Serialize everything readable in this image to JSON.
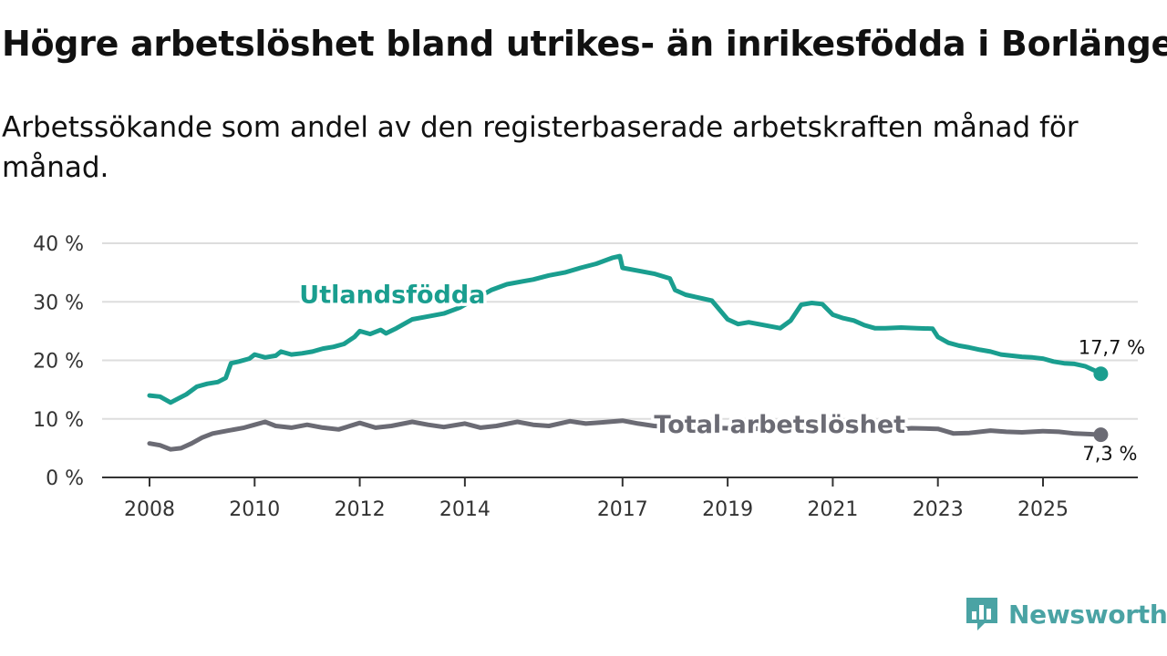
{
  "title": "Högre arbetslöshet bland utrikes- än inrikesfödda i Borlänge",
  "subtitle": "Arbetssökande som andel av den registerbaserade arbetskraften månad för månad.",
  "brand": {
    "name": "Newsworthy",
    "icon": "newsworthy-logo-icon"
  },
  "colors": {
    "utlandsfodda": "#1a9e8f",
    "total": "#6b6b74",
    "brand": "#4aa3a4",
    "grid": "#dddddd",
    "axis": "#333333"
  },
  "chart_data": {
    "type": "line",
    "title": "Högre arbetslöshet bland utrikes- än inrikesfödda i Borlänge",
    "xlabel": "",
    "ylabel": "",
    "ylim": [
      0,
      40
    ],
    "xlim": [
      2008,
      2026.3
    ],
    "y_ticks": [
      0,
      10,
      20,
      30,
      40
    ],
    "y_tick_labels": [
      "0 %",
      "10 %",
      "20 %",
      "30 %",
      "40 %"
    ],
    "x_ticks": [
      2008,
      2010,
      2012,
      2014,
      2017,
      2019,
      2021,
      2023,
      2025
    ],
    "x_tick_labels": [
      "2008",
      "2010",
      "2012",
      "2014",
      "2017",
      "2019",
      "2021",
      "2023",
      "2025"
    ],
    "grid": true,
    "series": [
      {
        "name": "Utlandsfödda",
        "label": "Utlandsfödda",
        "end_label": "17,7 %",
        "x": [
          2008.0,
          2008.2,
          2008.4,
          2008.55,
          2008.7,
          2008.9,
          2009.1,
          2009.3,
          2009.45,
          2009.55,
          2009.7,
          2009.9,
          2010.0,
          2010.2,
          2010.4,
          2010.5,
          2010.7,
          2010.9,
          2011.1,
          2011.3,
          2011.5,
          2011.7,
          2011.9,
          2012.0,
          2012.2,
          2012.4,
          2012.5,
          2012.7,
          2012.9,
          2013.0,
          2013.3,
          2013.6,
          2013.9,
          2014.2,
          2014.5,
          2014.8,
          2015.1,
          2015.3,
          2015.6,
          2015.9,
          2016.2,
          2016.5,
          2016.8,
          2016.95,
          2017.0,
          2017.3,
          2017.6,
          2017.9,
          2018.0,
          2018.2,
          2018.4,
          2018.7,
          2019.0,
          2019.2,
          2019.4,
          2019.7,
          2020.0,
          2020.2,
          2020.4,
          2020.6,
          2020.8,
          2021.0,
          2021.2,
          2021.4,
          2021.6,
          2021.8,
          2022.0,
          2022.3,
          2022.6,
          2022.9,
          2023.0,
          2023.2,
          2023.4,
          2023.6,
          2023.8,
          2024.0,
          2024.2,
          2024.4,
          2024.6,
          2024.8,
          2025.0,
          2025.2,
          2025.4,
          2025.6,
          2025.8,
          2026.0,
          2026.1
        ],
        "values": [
          14.0,
          13.8,
          12.8,
          13.5,
          14.2,
          15.5,
          16.0,
          16.3,
          17.0,
          19.5,
          19.8,
          20.3,
          21.0,
          20.5,
          20.8,
          21.5,
          21.0,
          21.2,
          21.5,
          22.0,
          22.3,
          22.8,
          24.0,
          25.0,
          24.5,
          25.2,
          24.6,
          25.5,
          26.5,
          27.0,
          27.5,
          28.0,
          29.0,
          30.5,
          32.0,
          33.0,
          33.5,
          33.8,
          34.5,
          35.0,
          35.8,
          36.5,
          37.5,
          37.8,
          35.8,
          35.3,
          34.8,
          34.0,
          32.0,
          31.2,
          30.8,
          30.2,
          27.0,
          26.2,
          26.5,
          26.0,
          25.5,
          26.8,
          29.5,
          29.8,
          29.6,
          27.8,
          27.2,
          26.8,
          26.0,
          25.5,
          25.5,
          25.6,
          25.5,
          25.4,
          24.0,
          23.0,
          22.5,
          22.2,
          21.8,
          21.5,
          21.0,
          20.8,
          20.6,
          20.5,
          20.3,
          19.8,
          19.5,
          19.4,
          19.0,
          18.2,
          17.7
        ]
      },
      {
        "name": "Total arbetslöshet",
        "label": "Total arbetslöshet",
        "end_label": "7,3 %",
        "x": [
          2008.0,
          2008.2,
          2008.4,
          2008.6,
          2008.8,
          2009.0,
          2009.2,
          2009.5,
          2009.8,
          2010.0,
          2010.2,
          2010.4,
          2010.7,
          2011.0,
          2011.3,
          2011.6,
          2012.0,
          2012.3,
          2012.6,
          2013.0,
          2013.3,
          2013.6,
          2014.0,
          2014.3,
          2014.6,
          2015.0,
          2015.3,
          2015.6,
          2016.0,
          2016.3,
          2016.6,
          2017.0,
          2017.3,
          2017.6,
          2018.0,
          2018.5,
          2019.0,
          2019.5,
          2020.0,
          2020.5,
          2021.0,
          2021.5,
          2022.0,
          2022.5,
          2023.0,
          2023.3,
          2023.6,
          2024.0,
          2024.3,
          2024.6,
          2025.0,
          2025.3,
          2025.6,
          2025.9,
          2026.1
        ],
        "values": [
          5.8,
          5.5,
          4.8,
          5.0,
          5.8,
          6.8,
          7.5,
          8.0,
          8.5,
          9.0,
          9.5,
          8.8,
          8.5,
          9.0,
          8.5,
          8.2,
          9.3,
          8.5,
          8.8,
          9.5,
          9.0,
          8.6,
          9.2,
          8.5,
          8.8,
          9.5,
          9.0,
          8.8,
          9.6,
          9.2,
          9.4,
          9.7,
          9.2,
          8.8,
          8.6,
          8.5,
          8.4,
          8.3,
          8.5,
          8.4,
          8.2,
          8.3,
          8.0,
          8.4,
          8.3,
          7.5,
          7.6,
          8.0,
          7.8,
          7.7,
          7.9,
          7.8,
          7.5,
          7.4,
          7.3
        ]
      }
    ]
  }
}
